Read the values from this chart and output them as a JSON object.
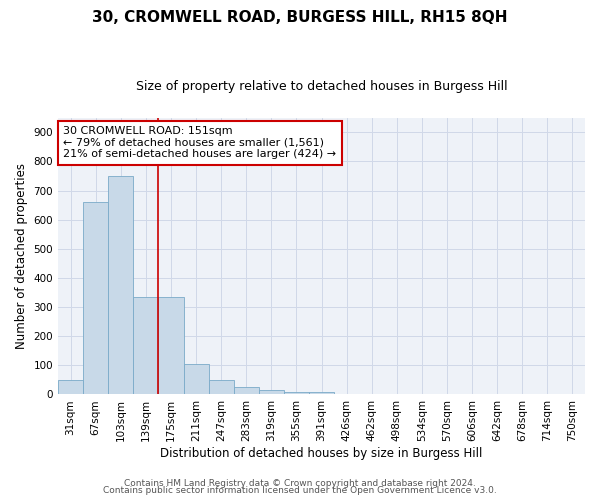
{
  "title": "30, CROMWELL ROAD, BURGESS HILL, RH15 8QH",
  "subtitle": "Size of property relative to detached houses in Burgess Hill",
  "xlabel": "Distribution of detached houses by size in Burgess Hill",
  "ylabel": "Number of detached properties",
  "bar_color": "#c8d9e8",
  "bar_edge_color": "#7aaac8",
  "background_color": "#eef2f8",
  "grid_color": "#d0d8e8",
  "categories": [
    "31sqm",
    "67sqm",
    "103sqm",
    "139sqm",
    "175sqm",
    "211sqm",
    "247sqm",
    "283sqm",
    "319sqm",
    "355sqm",
    "391sqm",
    "426sqm",
    "462sqm",
    "498sqm",
    "534sqm",
    "570sqm",
    "606sqm",
    "642sqm",
    "678sqm",
    "714sqm",
    "750sqm"
  ],
  "values": [
    50,
    660,
    750,
    335,
    335,
    105,
    50,
    25,
    15,
    10,
    8,
    0,
    0,
    0,
    0,
    0,
    0,
    0,
    0,
    0,
    0
  ],
  "ylim": [
    0,
    950
  ],
  "yticks": [
    0,
    100,
    200,
    300,
    400,
    500,
    600,
    700,
    800,
    900
  ],
  "property_line_x": 3.5,
  "annotation_line1": "30 CROMWELL ROAD: 151sqm",
  "annotation_line2": "← 79% of detached houses are smaller (1,561)",
  "annotation_line3": "21% of semi-detached houses are larger (424) →",
  "footer_line1": "Contains HM Land Registry data © Crown copyright and database right 2024.",
  "footer_line2": "Contains public sector information licensed under the Open Government Licence v3.0.",
  "red_line_color": "#cc0000",
  "annotation_border_color": "#cc0000",
  "annotation_fontsize": 8,
  "title_fontsize": 11,
  "subtitle_fontsize": 9,
  "axis_label_fontsize": 8.5,
  "tick_fontsize": 7.5,
  "footer_fontsize": 6.5
}
